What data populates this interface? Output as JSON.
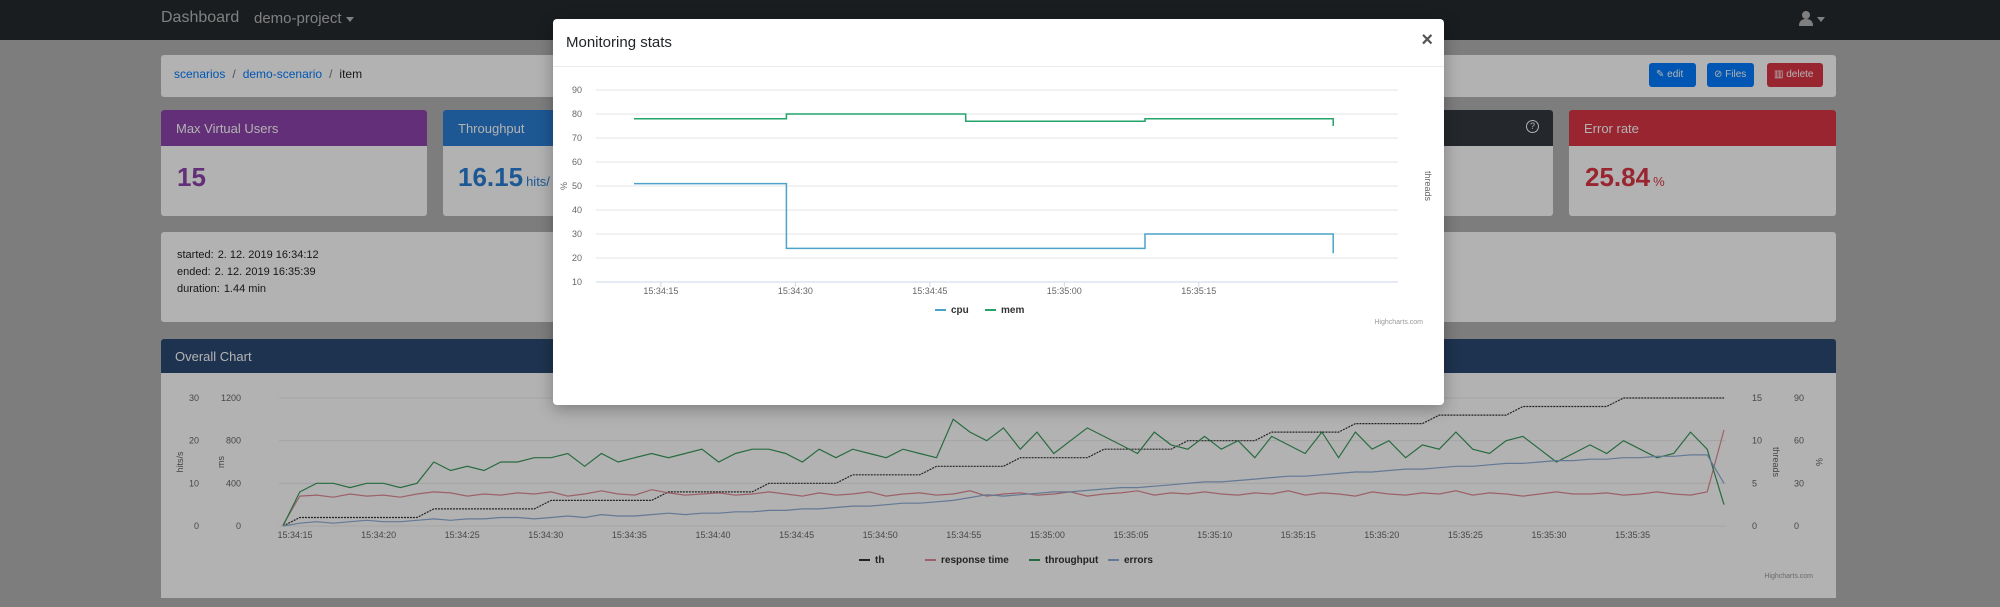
{
  "navbar": {
    "brand": "Dashboard",
    "project": "demo-project",
    "user_icon": "user-icon"
  },
  "breadcrumb": {
    "items": [
      "scenarios",
      "demo-scenario",
      "item"
    ]
  },
  "actions": {
    "edit": "edit",
    "files": "Files",
    "delete": "delete"
  },
  "stats": [
    {
      "title": "Max Virtual Users",
      "value": "15",
      "unit": "",
      "color": "#8e44ad"
    },
    {
      "title": "Throughput",
      "value": "16.15",
      "unit": "hits/",
      "color": "#2a7fd4"
    },
    {
      "title": "",
      "value": "",
      "unit": "",
      "color": "#343a40"
    },
    {
      "title": "Error rate",
      "value": "25.84",
      "unit": "%",
      "color": "#dc3545"
    }
  ],
  "info": {
    "started_label": "started:",
    "started": "2. 12. 2019 16:34:12",
    "ended_label": "ended:",
    "ended": "2. 12. 2019 16:35:39",
    "duration_label": "duration:",
    "duration": "1.44 min"
  },
  "overall": {
    "title": "Overall Chart",
    "credit": "Highcharts.com",
    "legend": [
      "th",
      "response time",
      "throughput",
      "errors"
    ],
    "y_left_outer_label": "hits/s",
    "y_left_inner_label": "ms",
    "y_right_inner_label": "threads",
    "y_right_outer_label": "%",
    "y_left_outer_ticks": [
      "30",
      "20",
      "10",
      "0"
    ],
    "y_left_inner_ticks": [
      "1200",
      "800",
      "400",
      "0"
    ],
    "y_right_inner_ticks": [
      "15",
      "10",
      "5",
      "0"
    ],
    "y_right_outer_ticks": [
      "90",
      "60",
      "30",
      "0"
    ],
    "x_ticks": [
      "15:34:15",
      "15:34:20",
      "15:34:25",
      "15:34:30",
      "15:34:35",
      "15:34:40",
      "15:34:45",
      "15:34:50",
      "15:34:55",
      "15:35:00",
      "15:35:05",
      "15:35:10",
      "15:35:15",
      "15:35:20",
      "15:35:25",
      "15:35:30",
      "15:35:35"
    ]
  },
  "modal": {
    "title": "Monitoring stats",
    "close": "×",
    "credit": "Highcharts.com"
  },
  "colors": {
    "cpu": "#4ba3c7",
    "mem": "#24a36b",
    "throughput": "#3a9a5c",
    "response": "#e08c95",
    "threads": "#333333",
    "errors": "#8faed6"
  },
  "chart_data": [
    {
      "type": "line",
      "title": "Monitoring stats",
      "step": true,
      "ylabel": "%",
      "y2label": "threads",
      "ylim": [
        10,
        90
      ],
      "yticks": [
        "10",
        "20",
        "30",
        "40",
        "50",
        "60",
        "70",
        "80",
        "90"
      ],
      "xticks": [
        "15:34:15",
        "15:34:30",
        "15:34:45",
        "15:35:00",
        "15:35:15"
      ],
      "x_start": "15:34:12",
      "x_end": "15:35:37",
      "series": [
        {
          "name": "cpu",
          "points": [
            [
              "15:34:12",
              51
            ],
            [
              "15:34:29",
              51
            ],
            [
              "15:34:29",
              24
            ],
            [
              "15:35:09",
              24
            ],
            [
              "15:35:09",
              30
            ],
            [
              "15:35:30",
              30
            ],
            [
              "15:35:30",
              22
            ]
          ]
        },
        {
          "name": "mem",
          "points": [
            [
              "15:34:12",
              78
            ],
            [
              "15:34:29",
              78
            ],
            [
              "15:34:29",
              80
            ],
            [
              "15:34:49",
              80
            ],
            [
              "15:34:49",
              77
            ],
            [
              "15:35:09",
              77
            ],
            [
              "15:35:09",
              78
            ],
            [
              "15:35:30",
              78
            ],
            [
              "15:35:30",
              75
            ]
          ]
        }
      ],
      "legend_placement": "bottom-center"
    },
    {
      "type": "line",
      "title": "Overall Chart",
      "ylim_hits": [
        0,
        30
      ],
      "ylim_ms": [
        0,
        1200
      ],
      "ylim_threads": [
        0,
        15
      ],
      "ylim_pct": [
        0,
        90
      ],
      "series": [
        {
          "name": "th",
          "axis": "threads",
          "values": [
            0,
            1,
            1,
            1,
            1,
            1,
            1,
            1,
            1,
            2,
            2,
            2,
            2,
            2,
            2,
            2,
            3,
            3,
            3,
            3,
            3,
            3,
            3,
            4,
            4,
            4,
            4,
            4,
            4,
            5,
            5,
            5,
            5,
            5,
            6,
            6,
            6,
            6,
            6,
            7,
            7,
            7,
            7,
            7,
            8,
            8,
            8,
            8,
            8,
            9,
            9,
            9,
            9,
            9,
            10,
            10,
            10,
            10,
            10,
            11,
            11,
            11,
            11,
            11,
            12,
            12,
            12,
            12,
            12,
            13,
            13,
            13,
            13,
            13,
            14,
            14,
            14,
            14,
            14,
            14,
            15,
            15,
            15,
            15,
            15,
            15,
            15
          ]
        },
        {
          "name": "response time",
          "axis": "ms",
          "values": [
            10,
            280,
            290,
            270,
            300,
            280,
            290,
            270,
            300,
            320,
            310,
            280,
            300,
            290,
            310,
            300,
            320,
            280,
            300,
            330,
            300,
            290,
            340,
            310,
            290,
            300,
            310,
            290,
            300,
            320,
            300,
            280,
            310,
            290,
            300,
            320,
            280,
            300,
            310,
            290,
            300,
            330,
            280,
            300,
            310,
            290,
            300,
            320,
            280,
            300,
            310,
            330,
            290,
            310,
            300,
            320,
            300,
            290,
            310,
            300,
            330,
            290,
            310,
            300,
            280,
            320,
            300,
            290,
            310,
            300,
            330,
            290,
            310,
            300,
            280,
            300,
            320,
            300,
            300,
            310,
            290,
            300,
            320,
            300,
            290,
            320,
            900
          ]
        },
        {
          "name": "throughput",
          "axis": "hits",
          "values": [
            0,
            8,
            10,
            10,
            9,
            10,
            10,
            9,
            10,
            15,
            13,
            14,
            13,
            15,
            15,
            16,
            16,
            17,
            14,
            17,
            15,
            16,
            17,
            16,
            17,
            18,
            15,
            17,
            18,
            18,
            17,
            15,
            18,
            16,
            18,
            17,
            16,
            18,
            17,
            16,
            25,
            22,
            20,
            23,
            18,
            22,
            17,
            20,
            23,
            21,
            19,
            17,
            22,
            19,
            18,
            21,
            18,
            20,
            16,
            21,
            19,
            17,
            22,
            16,
            22,
            18,
            20,
            16,
            19,
            18,
            22,
            18,
            17,
            20,
            21,
            18,
            15,
            17,
            19,
            17,
            20,
            18,
            16,
            17,
            22,
            18,
            5
          ]
        },
        {
          "name": "errors",
          "axis": "pct",
          "values": [
            0,
            2,
            3,
            2,
            3,
            4,
            3,
            3,
            4,
            5,
            4,
            5,
            5,
            6,
            6,
            5,
            6,
            7,
            6,
            8,
            7,
            7,
            8,
            9,
            8,
            9,
            9,
            10,
            10,
            11,
            11,
            12,
            12,
            13,
            14,
            14,
            15,
            16,
            16,
            17,
            18,
            20,
            22,
            21,
            22,
            23,
            24,
            24,
            25,
            26,
            27,
            27,
            28,
            29,
            30,
            31,
            31,
            32,
            33,
            34,
            35,
            35,
            36,
            37,
            38,
            38,
            39,
            40,
            40,
            41,
            42,
            42,
            43,
            44,
            44,
            45,
            46,
            46,
            47,
            47,
            48,
            48,
            49,
            49,
            50,
            50,
            30
          ]
        }
      ]
    }
  ]
}
